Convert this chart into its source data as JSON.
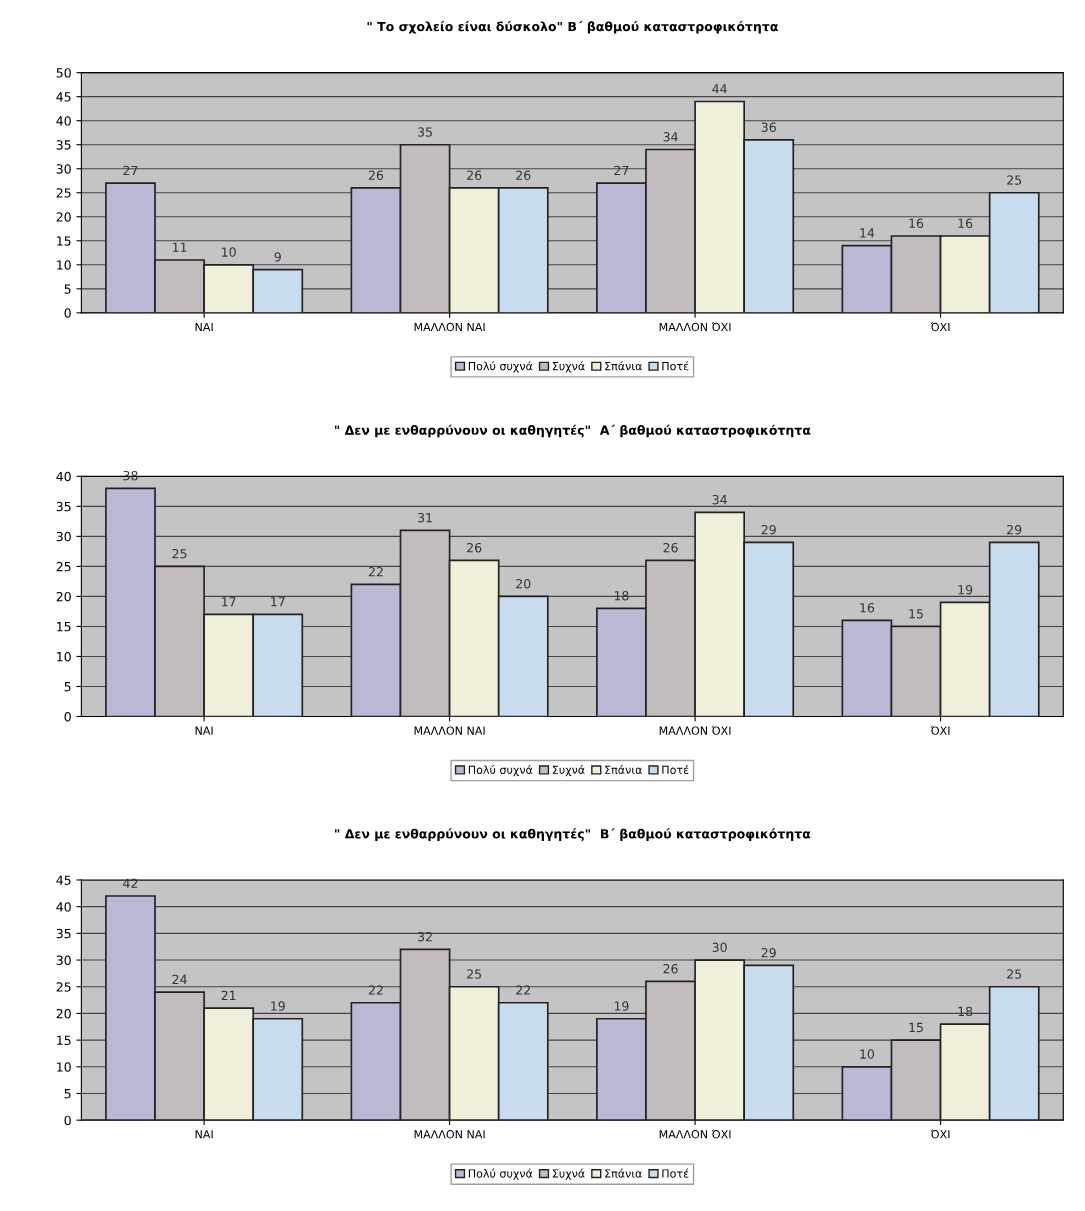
{
  "chart_data": [
    {
      "type": "bar",
      "title": "\" Το σχολείο είναι δύσκολο\" Β΄ βαθμού καταστροφικότητα",
      "categories": [
        "ΝΑΙ",
        "ΜΑΛΛΟΝ ΝΑΙ",
        "ΜΑΛΛΟΝ ΌΧΙ",
        "ΌΧΙ"
      ],
      "series": [
        {
          "name": "Πολύ συχνά",
          "color": "#b9b9d6",
          "values": [
            27,
            26,
            27,
            14
          ]
        },
        {
          "name": "Συχνά",
          "color": "#c2bcbc",
          "values": [
            11,
            35,
            34,
            16
          ]
        },
        {
          "name": "Σπάνια",
          "color": "#f0f0da",
          "values": [
            10,
            26,
            44,
            16
          ]
        },
        {
          "name": "Ποτέ",
          "color": "#c9dcef",
          "values": [
            9,
            26,
            36,
            25
          ]
        }
      ],
      "ylim": [
        0,
        50
      ],
      "yticks": [
        0,
        5,
        10,
        15,
        20,
        25,
        30,
        35,
        40,
        45,
        50
      ],
      "grid": "y",
      "legend": "bottom",
      "data_labels": true
    },
    {
      "type": "bar",
      "title": "\" Δεν με ενθαρρύνουν οι καθηγητές\"  Α΄ βαθμού καταστροφικότητα",
      "categories": [
        "ΝΑΙ",
        "ΜΑΛΛΟΝ ΝΑΙ",
        "ΜΑΛΛΟΝ ΌΧΙ",
        "ΌΧΙ"
      ],
      "series": [
        {
          "name": "Πολύ συχνά",
          "color": "#b9b9d6",
          "values": [
            38,
            22,
            18,
            16
          ]
        },
        {
          "name": "Συχνά",
          "color": "#c2bcbc",
          "values": [
            25,
            31,
            26,
            15
          ]
        },
        {
          "name": "Σπάνια",
          "color": "#f0f0da",
          "values": [
            17,
            26,
            34,
            19
          ]
        },
        {
          "name": "Ποτέ",
          "color": "#c9dcef",
          "values": [
            17,
            20,
            29,
            29
          ]
        }
      ],
      "ylim": [
        0,
        40
      ],
      "yticks": [
        0,
        5,
        10,
        15,
        20,
        25,
        30,
        35,
        40
      ],
      "grid": "y",
      "legend": "bottom",
      "data_labels": true
    },
    {
      "type": "bar",
      "title": "\" Δεν με ενθαρρύνουν οι καθηγητές\"  Β΄ βαθμού καταστροφικότητα",
      "categories": [
        "ΝΑΙ",
        "ΜΑΛΛΟΝ ΝΑΙ",
        "ΜΑΛΛΟΝ ΌΧΙ",
        "ΌΧΙ"
      ],
      "series": [
        {
          "name": "Πολύ συχνά",
          "color": "#b9b9d6",
          "values": [
            42,
            22,
            19,
            10
          ]
        },
        {
          "name": "Συχνά",
          "color": "#c2bcbc",
          "values": [
            24,
            32,
            26,
            15
          ]
        },
        {
          "name": "Σπάνια",
          "color": "#f0f0da",
          "values": [
            21,
            25,
            30,
            18
          ]
        },
        {
          "name": "Ποτέ",
          "color": "#c9dcef",
          "values": [
            19,
            22,
            29,
            25
          ]
        }
      ],
      "ylim": [
        0,
        45
      ],
      "yticks": [
        0,
        5,
        10,
        15,
        20,
        25,
        30,
        35,
        40,
        45
      ],
      "grid": "y",
      "legend": "bottom",
      "data_labels": true
    }
  ]
}
